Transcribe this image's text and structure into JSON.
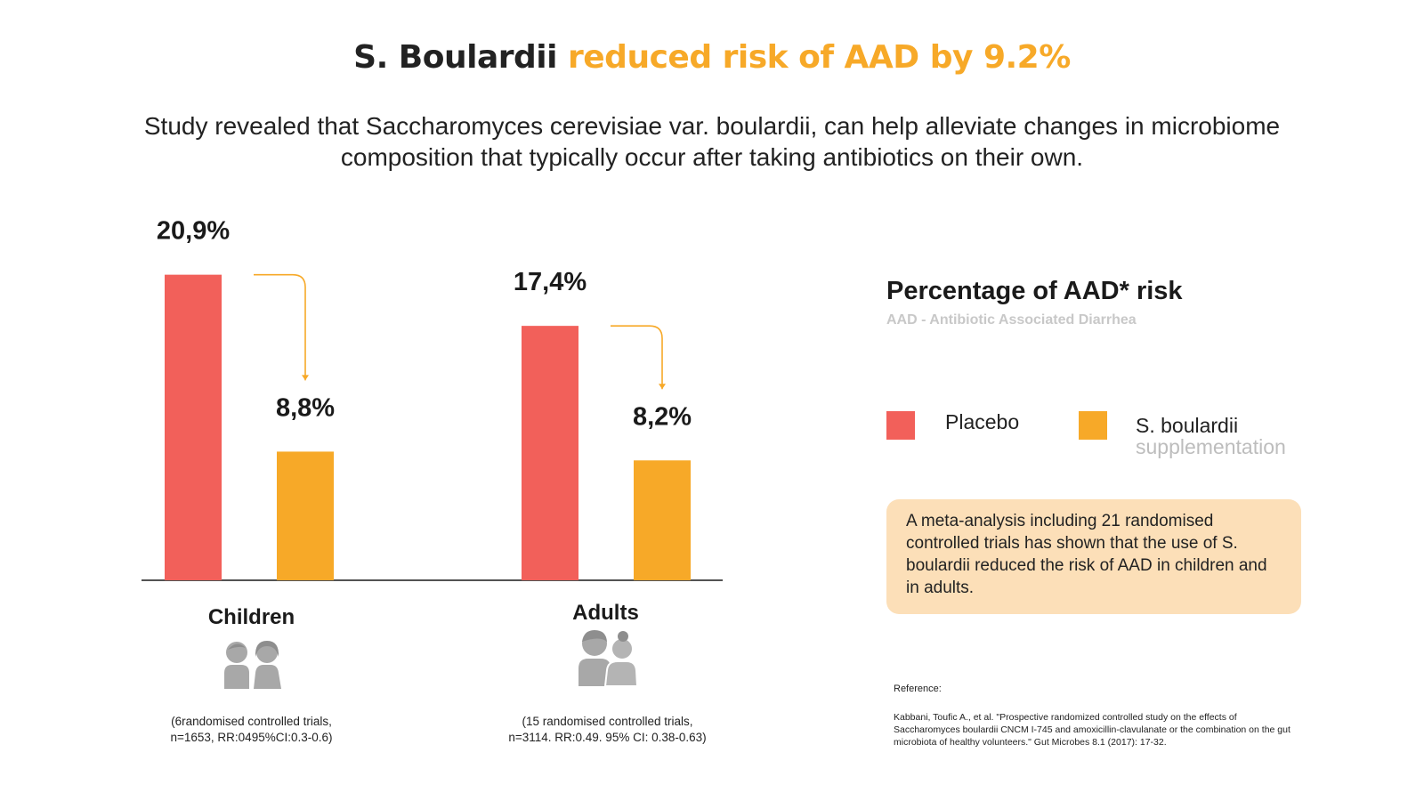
{
  "title": {
    "lead": "S. Boulardii",
    "accent": "reduced risk of AAD by 9.2%"
  },
  "intro": "Study revealed that Saccharomyces cerevisiae var. boulardii, can help alleviate changes in microbiome composition that typically occur after taking antibiotics on their own.",
  "colors": {
    "placebo": "#f2605a",
    "boulardii": "#f7a928",
    "accent": "#f7a928",
    "note_bg": "#fcdfb8"
  },
  "chart_data": {
    "type": "bar",
    "categories": [
      "Children",
      "Adults"
    ],
    "series": [
      {
        "name": "Placebo",
        "values": [
          20.9,
          17.4
        ],
        "labels": [
          "20,9%",
          "17,4%"
        ]
      },
      {
        "name": "S. boulardii supplementation",
        "values": [
          8.8,
          8.2
        ],
        "labels": [
          "8,8%",
          "8,2%"
        ]
      }
    ],
    "ylim": [
      0,
      21
    ],
    "grid": false,
    "legend_position": "right",
    "footnotes": [
      [
        "(6randomised controlled trials,",
        "n=1653, RR:0495%CI:0.3-0.6)"
      ],
      [
        "(15 randomised controlled trials,",
        "n=3114. RR:0.49. 95% CI: 0.38-0.63)"
      ]
    ]
  },
  "legend": {
    "title": "Percentage of AAD* risk",
    "subtitle": "AAD - Antibiotic Associated Diarrhea",
    "placebo_label": "Placebo",
    "boulardii_label_line1": "S. boulardii",
    "boulardii_label_line2": "supplementation"
  },
  "note": "A meta-analysis including 21 randomised controlled trials has shown that the use of S. boulardii reduced the risk of AAD in children and in adults.",
  "reference": {
    "heading": "Reference:",
    "text": "Kabbani, Toufic A., et al. \"Prospective randomized controlled study on the effects of Saccharomyces boulardii CNCM I-745 and amoxicillin-clavulanate or the combination on the gut microbiota of healthy volunteers.\" Gut Microbes 8.1 (2017): 17-32."
  },
  "icons": {
    "children": "children-icon",
    "adults": "adults-icon"
  }
}
